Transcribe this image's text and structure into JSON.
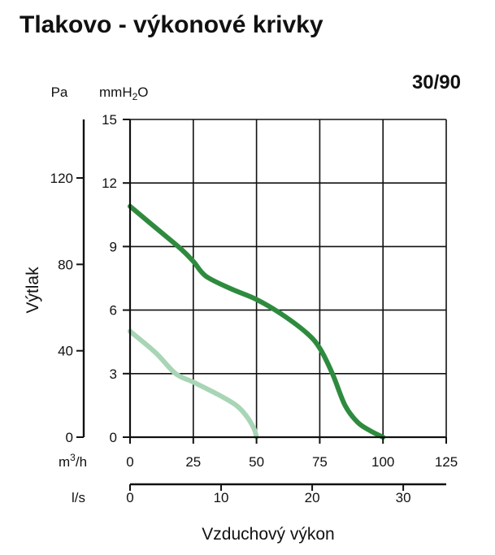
{
  "title": "Tlakovo - výkonové krivky",
  "model": "30/90",
  "chart_data": {
    "type": "line",
    "xlabel": "Vzduchový výkon",
    "ylabel": "Výtlak",
    "axes": {
      "x_primary": {
        "unit": "m³/h",
        "unit_base": "m",
        "unit_sup": "3",
        "unit_tail": "/h",
        "range": [
          0,
          125
        ],
        "ticks": [
          0,
          25,
          50,
          75,
          100,
          125
        ]
      },
      "x_secondary": {
        "unit": "l/s",
        "range": [
          0,
          34.72
        ],
        "ticks": [
          0,
          10,
          20,
          30
        ]
      },
      "y_primary": {
        "unit": "mmH₂O",
        "unit_base": "mmH",
        "unit_sub": "2",
        "unit_tail": "O",
        "range": [
          0,
          15
        ],
        "ticks": [
          0,
          3,
          6,
          9,
          12,
          15
        ]
      },
      "y_secondary": {
        "unit": "Pa",
        "range": [
          0,
          147.1
        ],
        "ticks": [
          0,
          40,
          80,
          120
        ]
      }
    },
    "grid": true,
    "series": [
      {
        "color": "#2e8b3e",
        "x": [
          0,
          10,
          20,
          25,
          30,
          40,
          50,
          60,
          70,
          75,
          80,
          85,
          90,
          95,
          100
        ],
        "y": [
          10.9,
          9.9,
          8.9,
          8.3,
          7.6,
          7.0,
          6.5,
          5.8,
          4.9,
          4.2,
          3.0,
          1.5,
          0.7,
          0.3,
          0.0
        ]
      },
      {
        "color": "#a8d5b5",
        "x": [
          0,
          10,
          18,
          25,
          35,
          42,
          46,
          49,
          50
        ],
        "y": [
          5.0,
          4.0,
          3.0,
          2.6,
          2.0,
          1.5,
          1.0,
          0.4,
          0.0
        ]
      }
    ]
  }
}
